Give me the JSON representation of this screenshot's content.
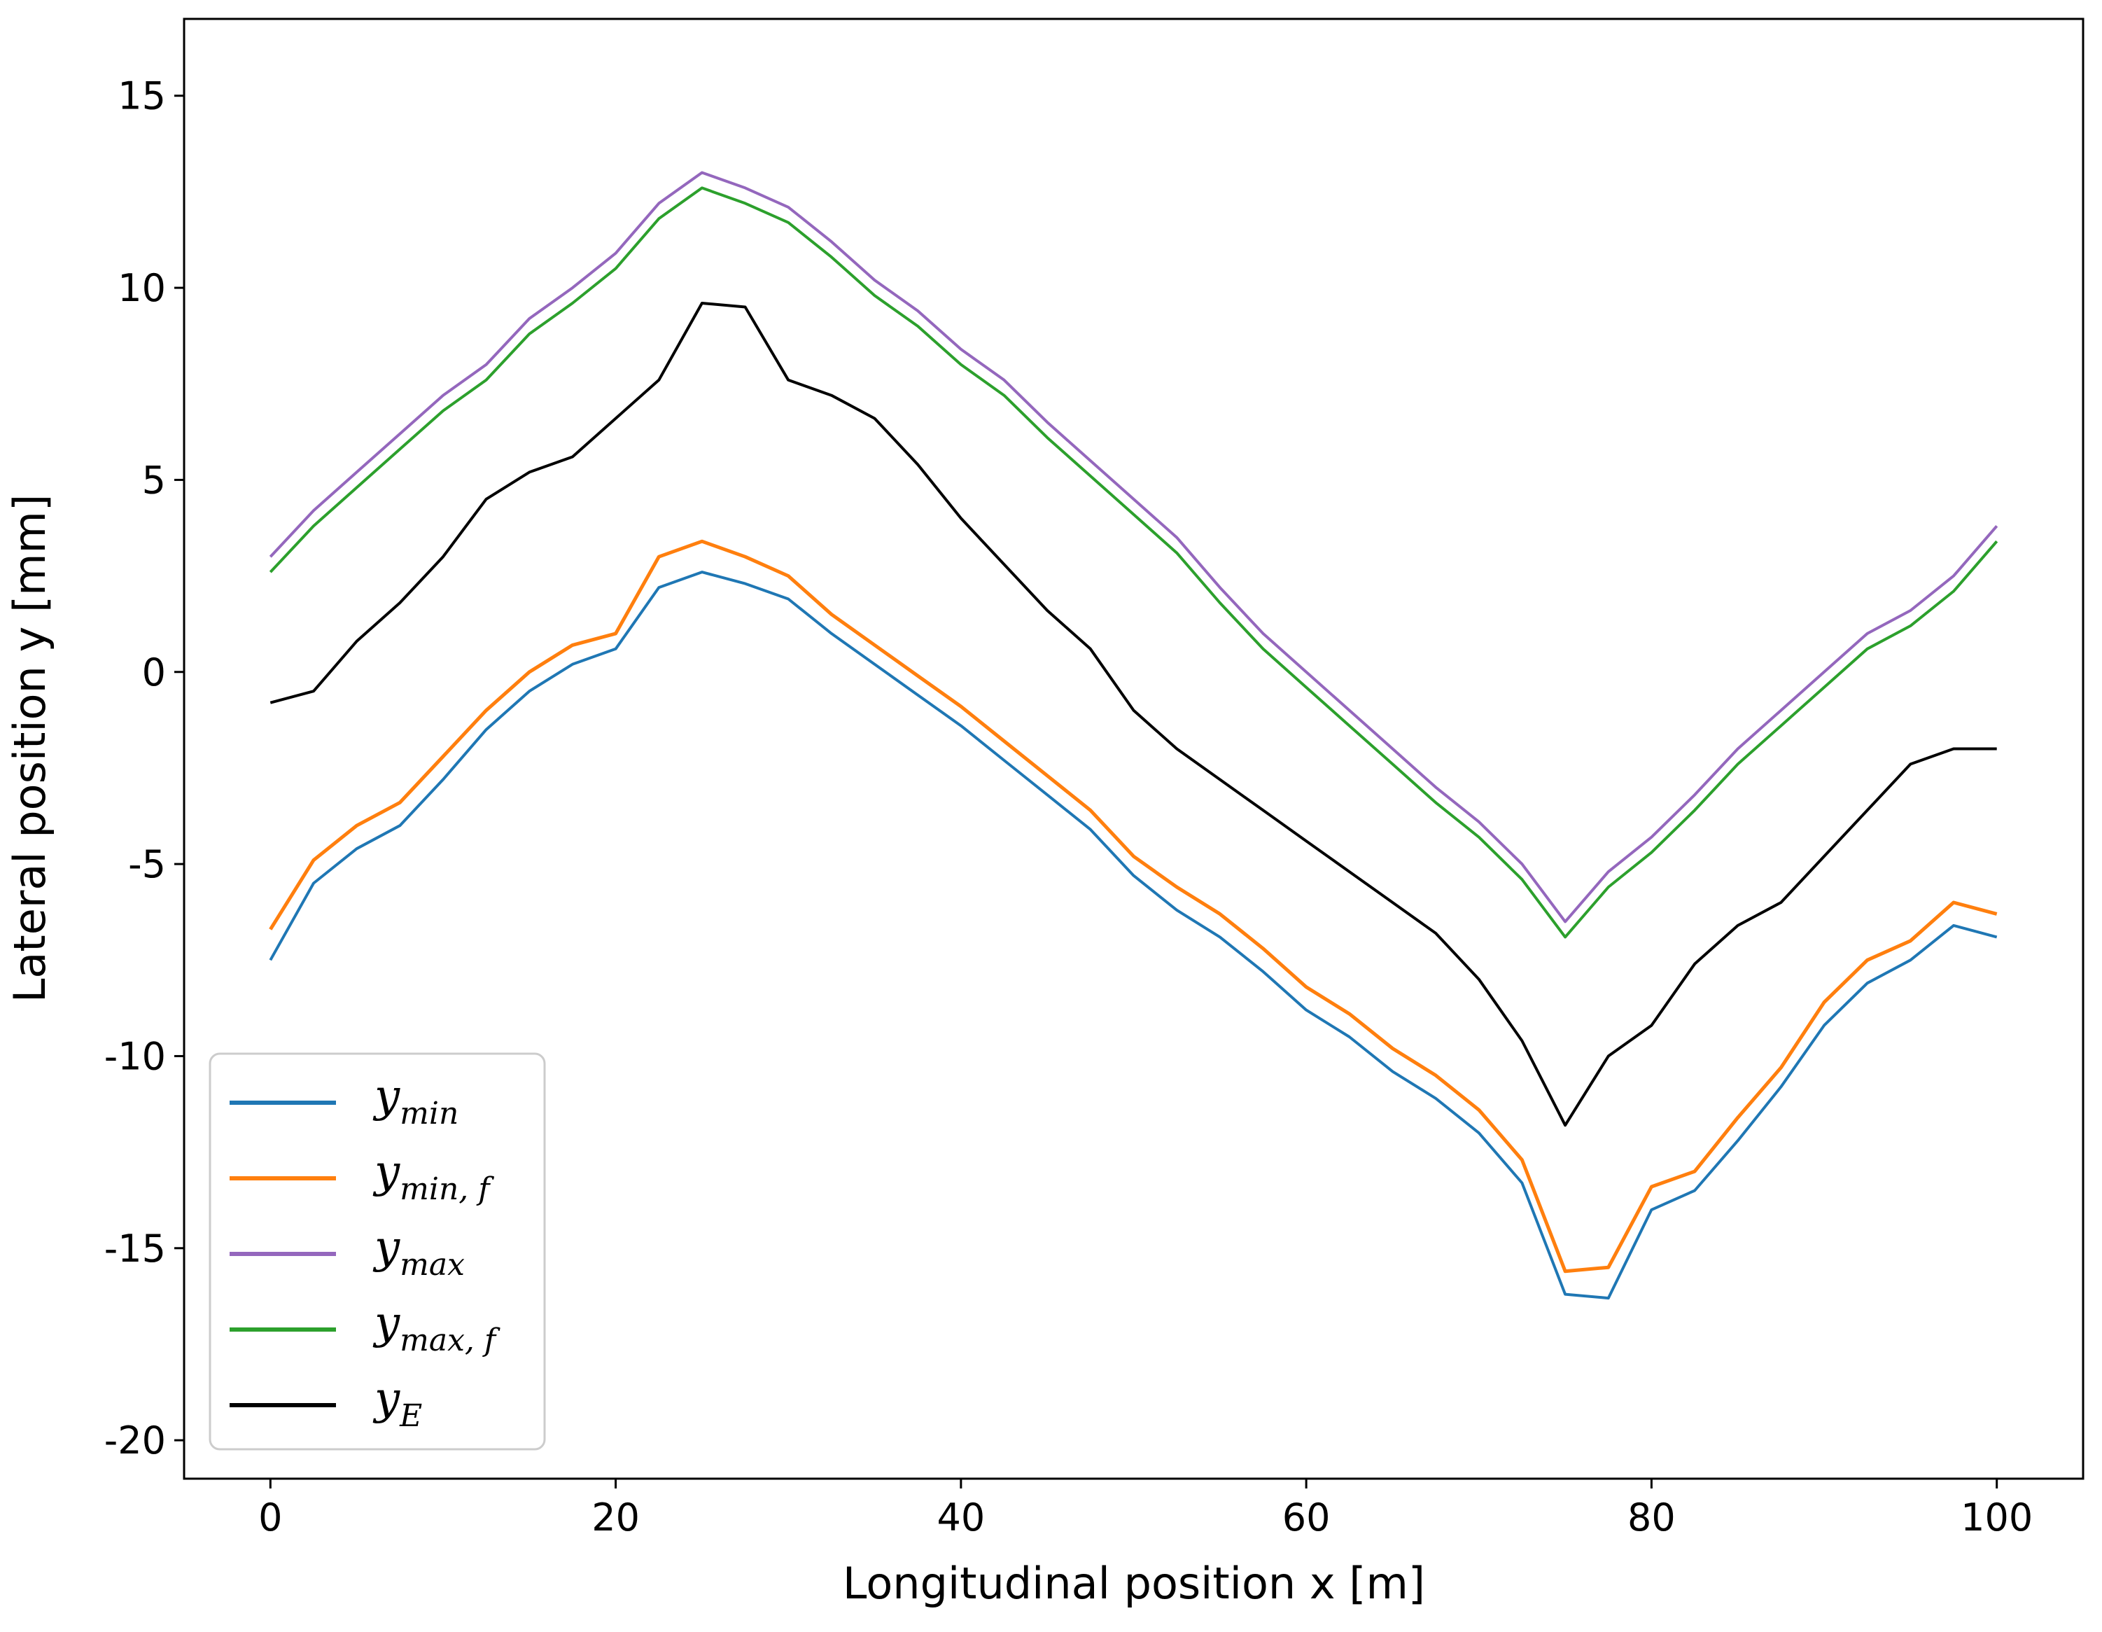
{
  "chart_data": {
    "type": "line",
    "title": "",
    "xlabel": "Longitudinal position x [m]",
    "ylabel": "Lateral position y [mm]",
    "xlim": [
      -5,
      105
    ],
    "ylim": [
      -21,
      17
    ],
    "xticks": [
      0,
      20,
      40,
      60,
      80,
      100
    ],
    "yticks": [
      15,
      10,
      5,
      0,
      -5,
      -10,
      -15,
      -20
    ],
    "xtick_labels": [
      "0",
      "20",
      "40",
      "60",
      "80",
      "100"
    ],
    "ytick_labels": [
      "15",
      "10",
      "5",
      "0",
      "-5",
      "-10",
      "-15",
      "-20"
    ],
    "grid": false,
    "legend_position": "bottom-left",
    "x": [
      0,
      2.5,
      5,
      7.5,
      10,
      12.5,
      15,
      17.5,
      20,
      22.5,
      25,
      27.5,
      30,
      32.5,
      35,
      37.5,
      40,
      42.5,
      45,
      47.5,
      50,
      52.5,
      55,
      57.5,
      60,
      62.5,
      65,
      67.5,
      70,
      72.5,
      75,
      77.5,
      80,
      82.5,
      85,
      87.5,
      90,
      92.5,
      95,
      97.5,
      100
    ],
    "series": [
      {
        "name": "y_min",
        "legend_main": "y",
        "legend_sub": "min",
        "color": "#1f77b4",
        "values": [
          -7.5,
          -5.5,
          -4.6,
          -4.0,
          -2.8,
          -1.5,
          -0.5,
          0.2,
          0.6,
          2.2,
          2.6,
          2.3,
          1.9,
          1.0,
          0.2,
          -0.6,
          -1.4,
          -2.3,
          -3.2,
          -4.1,
          -5.3,
          -6.2,
          -6.9,
          -7.8,
          -8.8,
          -9.5,
          -10.4,
          -11.1,
          -12.0,
          -13.3,
          -16.2,
          -16.3,
          -14.0,
          -13.5,
          -12.2,
          -10.8,
          -9.2,
          -8.1,
          -7.5,
          -6.6,
          -6.9
        ]
      },
      {
        "name": "y_min,f",
        "legend_main": "y",
        "legend_sub": "min, f",
        "color": "#ff7f0e",
        "values": [
          -6.7,
          -4.9,
          -4.0,
          -3.4,
          -2.2,
          -1.0,
          0.0,
          0.7,
          1.0,
          3.0,
          3.4,
          3.0,
          2.5,
          1.5,
          0.7,
          -0.1,
          -0.9,
          -1.8,
          -2.7,
          -3.6,
          -4.8,
          -5.6,
          -6.3,
          -7.2,
          -8.2,
          -8.9,
          -9.8,
          -10.5,
          -11.4,
          -12.7,
          -15.6,
          -15.5,
          -13.4,
          -13.0,
          -11.6,
          -10.3,
          -8.6,
          -7.5,
          -7.0,
          -6.0,
          -6.3
        ]
      },
      {
        "name": "y_max",
        "legend_main": "y",
        "legend_sub": "max",
        "color": "#9467bd",
        "values": [
          3.0,
          4.2,
          5.2,
          6.2,
          7.2,
          8.0,
          9.2,
          10.0,
          10.9,
          12.2,
          13.0,
          12.6,
          12.1,
          11.2,
          10.2,
          9.4,
          8.4,
          7.6,
          6.5,
          5.5,
          4.5,
          3.5,
          2.2,
          1.0,
          0.0,
          -1.0,
          -2.0,
          -3.0,
          -3.9,
          -5.0,
          -6.5,
          -5.2,
          -4.3,
          -3.2,
          -2.0,
          -1.0,
          0.0,
          1.0,
          1.6,
          2.5,
          3.8
        ]
      },
      {
        "name": "y_max,f",
        "legend_main": "y",
        "legend_sub": "max, f",
        "color": "#2ca02c",
        "values": [
          2.6,
          3.8,
          4.8,
          5.8,
          6.8,
          7.6,
          8.8,
          9.6,
          10.5,
          11.8,
          12.6,
          12.2,
          11.7,
          10.8,
          9.8,
          9.0,
          8.0,
          7.2,
          6.1,
          5.1,
          4.1,
          3.1,
          1.8,
          0.6,
          -0.4,
          -1.4,
          -2.4,
          -3.4,
          -4.3,
          -5.4,
          -6.9,
          -5.6,
          -4.7,
          -3.6,
          -2.4,
          -1.4,
          -0.4,
          0.6,
          1.2,
          2.1,
          3.4
        ]
      },
      {
        "name": "y_E",
        "legend_main": "y",
        "legend_sub": "E",
        "color": "#000000",
        "values": [
          -0.8,
          -0.5,
          0.8,
          1.8,
          3.0,
          4.5,
          5.2,
          5.6,
          6.6,
          7.6,
          9.6,
          9.5,
          7.6,
          7.2,
          6.6,
          5.4,
          4.0,
          2.8,
          1.6,
          0.6,
          -1.0,
          -2.0,
          -2.8,
          -3.6,
          -4.4,
          -5.2,
          -6.0,
          -6.8,
          -8.0,
          -9.6,
          -11.8,
          -10.0,
          -9.2,
          -7.6,
          -6.6,
          -6.0,
          -4.8,
          -3.6,
          -2.4,
          -2.0,
          -2.0
        ]
      }
    ]
  }
}
